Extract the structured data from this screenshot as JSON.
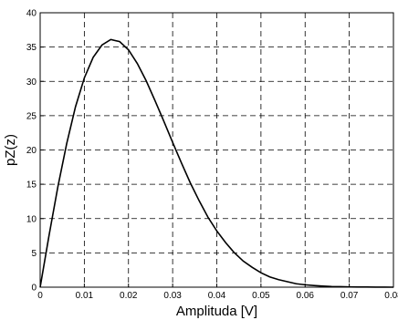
{
  "chart_data": {
    "type": "line",
    "title": "",
    "xlabel": "Amplituda [V]",
    "ylabel": "pZ(z)",
    "xlim": [
      0,
      0.08
    ],
    "ylim": [
      0,
      40
    ],
    "x_ticks": [
      0,
      0.01,
      0.02,
      0.03,
      0.04,
      0.05,
      0.06,
      0.07,
      0.08
    ],
    "x_tick_labels": [
      "0",
      "0.01",
      "0.02",
      "0.03",
      "0.04",
      "0.05",
      "0.06",
      "0.07",
      "0.08"
    ],
    "y_ticks": [
      0,
      5,
      10,
      15,
      20,
      25,
      30,
      35,
      40
    ],
    "y_tick_labels": [
      "0",
      "5",
      "10",
      "15",
      "20",
      "25",
      "30",
      "35",
      "40"
    ],
    "grid": true,
    "line_color": "#000000",
    "series": [
      {
        "x": [
          0,
          0.002,
          0.004,
          0.006,
          0.008,
          0.01,
          0.012,
          0.014,
          0.016,
          0.018,
          0.02,
          0.022,
          0.024,
          0.026,
          0.028,
          0.03,
          0.032,
          0.034,
          0.036,
          0.038,
          0.04,
          0.042,
          0.044,
          0.046,
          0.048,
          0.05,
          0.052,
          0.054,
          0.056,
          0.058,
          0.06,
          0.062,
          0.064,
          0.066,
          0.068,
          0.07,
          0.072,
          0.074,
          0.076,
          0.078,
          0.08
        ],
        "y": [
          0,
          7.5,
          14.6,
          20.9,
          26.3,
          30.5,
          33.5,
          35.3,
          36.1,
          35.8,
          34.6,
          32.6,
          30.1,
          27.2,
          24.2,
          21.1,
          18.1,
          15.2,
          12.6,
          10.2,
          8.2,
          6.5,
          5.0,
          3.8,
          2.9,
          2.1,
          1.5,
          1.1,
          0.8,
          0.5,
          0.35,
          0.24,
          0.16,
          0.1,
          0.07,
          0.04,
          0.03,
          0.02,
          0.01,
          0.01,
          0.0
        ]
      }
    ]
  }
}
